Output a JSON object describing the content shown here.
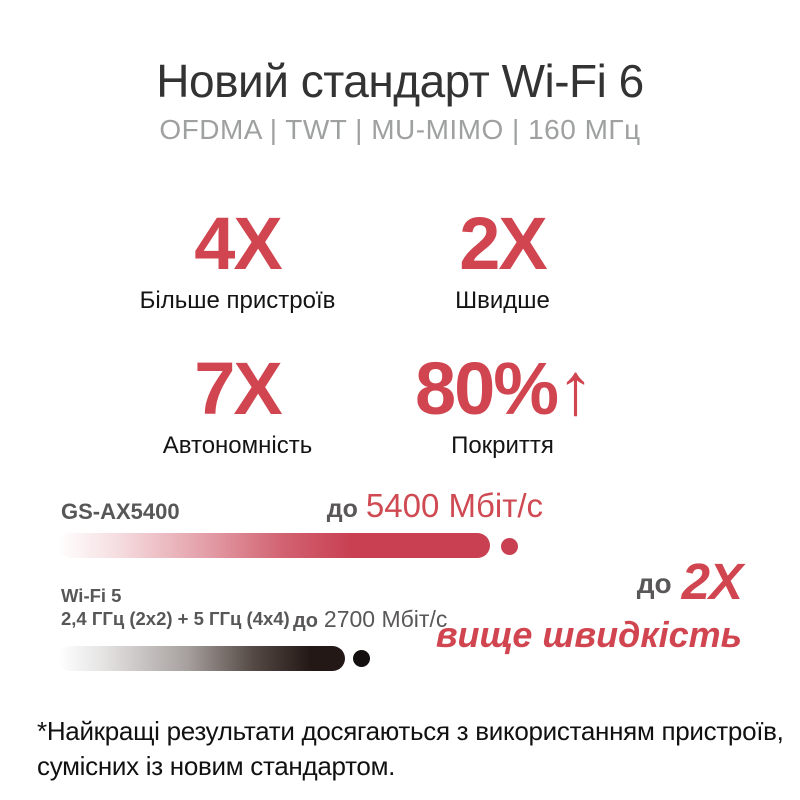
{
  "header": {
    "title": "Новий стандарт Wi-Fi 6",
    "subtitle": "OFDMA | TWT | MU-MIMO | 160 МГц"
  },
  "stats": [
    {
      "value": "4X",
      "label": "Більше пристроїв"
    },
    {
      "value": "2X",
      "label": "Швидше"
    },
    {
      "value": "7X",
      "label": "Автономність"
    },
    {
      "value": "80%",
      "arrow": "↑",
      "label": "Покриття"
    }
  ],
  "chart_data": {
    "type": "bar",
    "orientation": "horizontal",
    "unit": "Мбіт/с",
    "categories": [
      "GS-AX5400",
      "Wi-Fi 5"
    ],
    "series": [
      {
        "name": "GS-AX5400",
        "value": 5400,
        "value_prefix": "до",
        "value_label": "5400 Мбіт/с",
        "color": "#c84052",
        "endpoint_dot": true
      },
      {
        "name": "Wi-Fi 5",
        "sublabel": "2,4 ГГц (2x2) + 5 ГГц (4x4)",
        "value": 2700,
        "value_prefix": "до",
        "value_label": "2700 Мбіт/с",
        "color": "#231815",
        "endpoint_dot": true
      }
    ],
    "annotation": {
      "prefix": "до",
      "multiplier": "2X",
      "caption": "вище швидкість"
    },
    "legend_position": "none",
    "grid": false
  },
  "footnote": {
    "line1": "*Найкращі результати досягаються з використанням пристроїв,",
    "line2": "сумісних із новим стандартом."
  },
  "colors": {
    "accent_red": "#d0454f",
    "bar_red": "#c84052",
    "bar_black": "#231815",
    "light_gray": "#9fa0a0",
    "dark_gray": "#595757",
    "text_black": "#111111",
    "background": "#ffffff"
  }
}
